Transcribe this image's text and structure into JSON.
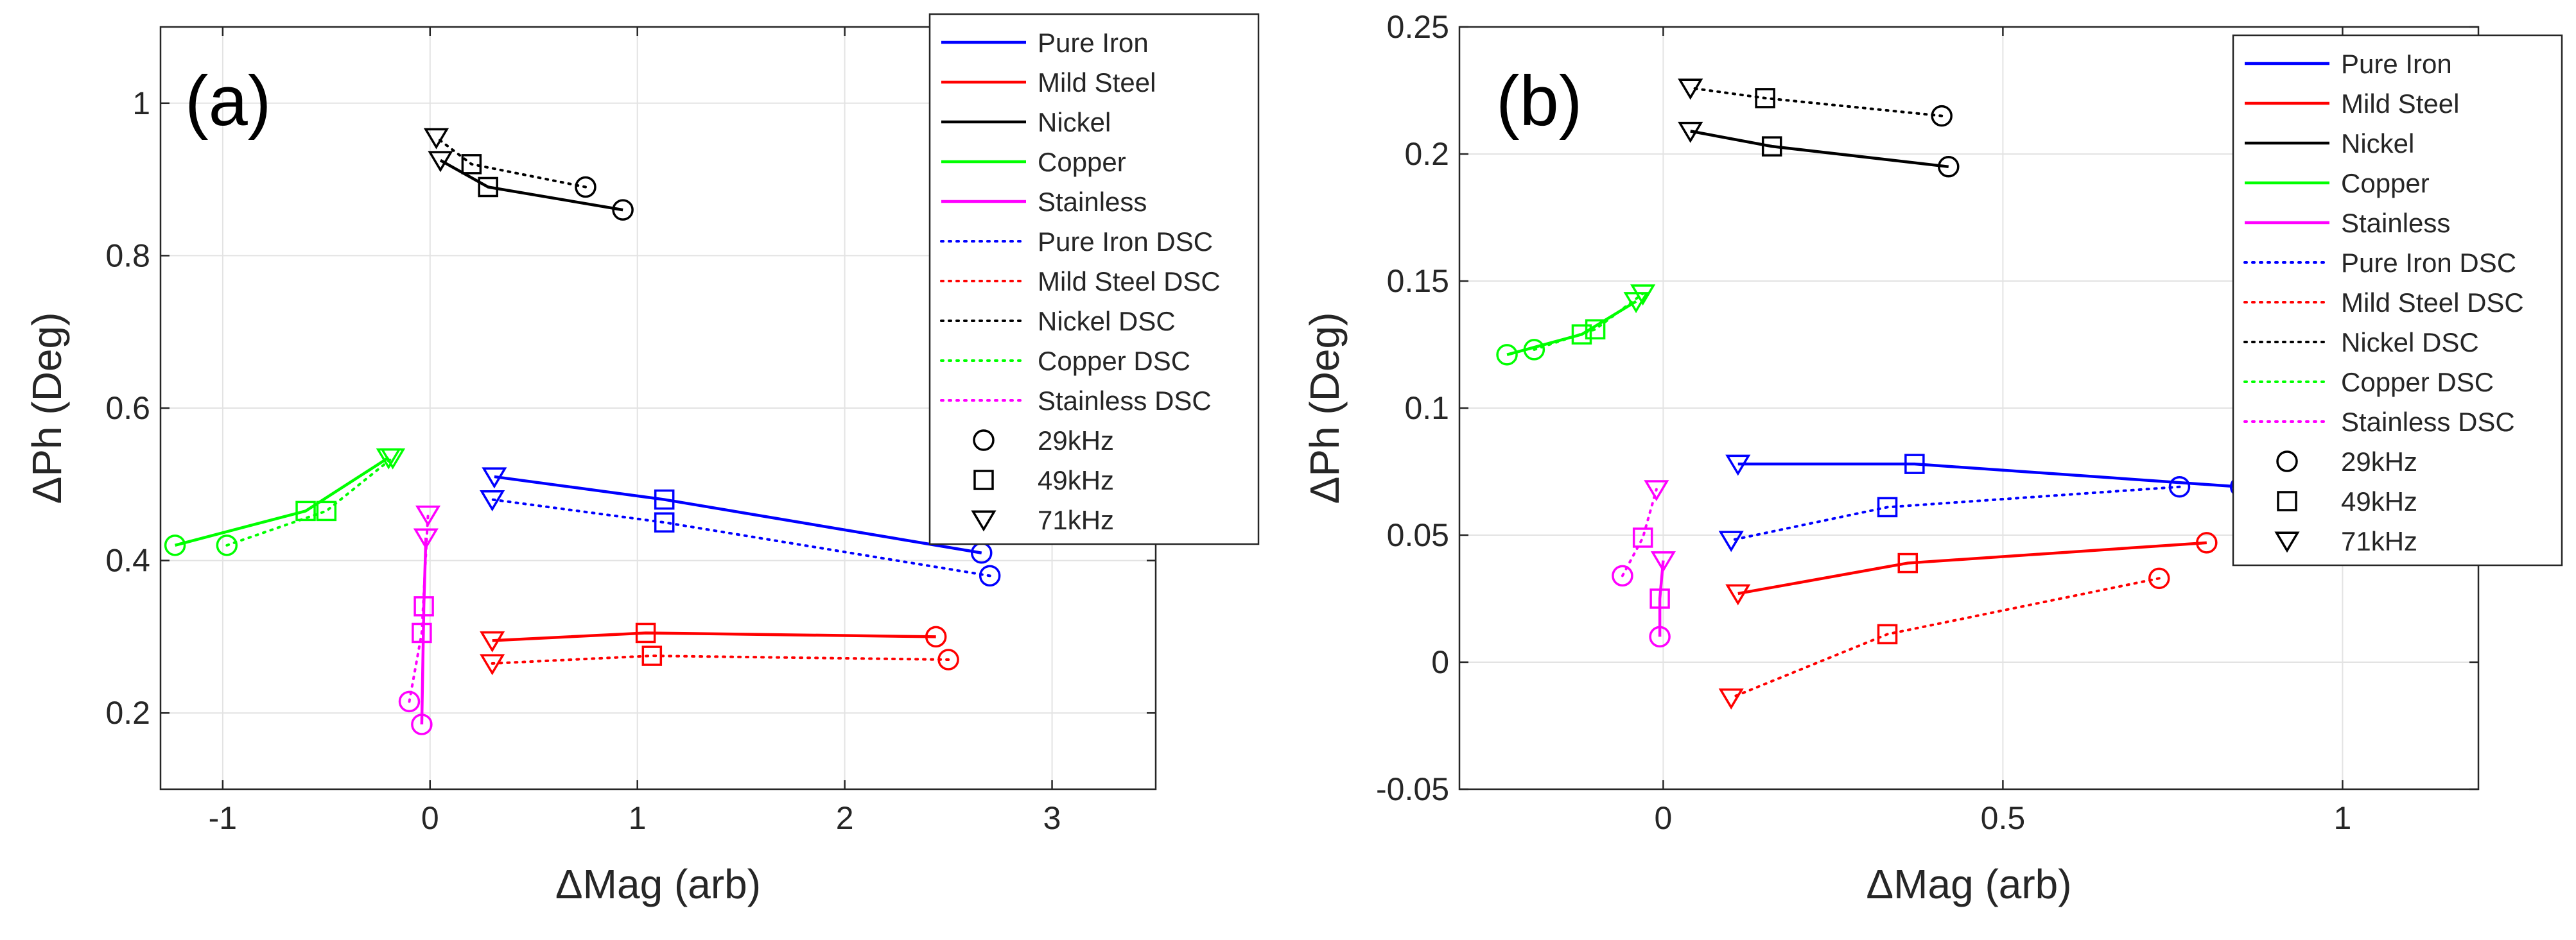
{
  "colors": {
    "Pure Iron": "#0000ff",
    "Mild Steel": "#ff0000",
    "Nickel": "#000000",
    "Copper": "#00ff00",
    "Stainless": "#ff00ff"
  },
  "chart_data": [
    {
      "type": "line",
      "panel_label": "(a)",
      "xlabel": "ΔMag (arb)",
      "ylabel": "ΔPh (Deg)",
      "xlim": [
        -1.3,
        3.5
      ],
      "ylim": [
        0.1,
        1.1
      ],
      "xticks": [
        -1,
        0,
        1,
        2,
        3
      ],
      "xtick_labels": [
        "-1",
        "0",
        "1",
        "2",
        "3"
      ],
      "yticks": [
        0.2,
        0.4,
        0.6,
        0.8,
        1.0
      ],
      "ytick_labels": [
        "0.2",
        "0.4",
        "0.6",
        "0.8",
        "1"
      ],
      "grid": true,
      "legend_position": "top-right",
      "legend": {
        "lines": [
          {
            "label": "Pure Iron",
            "material": "Pure Iron",
            "style": "solid"
          },
          {
            "label": "Mild Steel",
            "material": "Mild Steel",
            "style": "solid"
          },
          {
            "label": "Nickel",
            "material": "Nickel",
            "style": "solid"
          },
          {
            "label": "Copper",
            "material": "Copper",
            "style": "solid"
          },
          {
            "label": "Stainless",
            "material": "Stainless",
            "style": "solid"
          },
          {
            "label": "Pure Iron DSC",
            "material": "Pure Iron",
            "style": "dotted"
          },
          {
            "label": "Mild Steel DSC",
            "material": "Mild Steel",
            "style": "dotted"
          },
          {
            "label": "Nickel DSC",
            "material": "Nickel",
            "style": "dotted"
          },
          {
            "label": "Copper DSC",
            "material": "Copper",
            "style": "dotted"
          },
          {
            "label": "Stainless DSC",
            "material": "Stainless",
            "style": "dotted"
          }
        ],
        "markers": [
          {
            "label": "29kHz",
            "marker": "circle"
          },
          {
            "label": "49kHz",
            "marker": "square"
          },
          {
            "label": "71kHz",
            "marker": "triangle-down"
          }
        ]
      },
      "series": [
        {
          "name": "Pure Iron",
          "material": "Pure Iron",
          "style": "solid",
          "x": [
            2.66,
            1.13,
            0.31
          ],
          "y": [
            0.41,
            0.48,
            0.51
          ]
        },
        {
          "name": "Mild Steel",
          "material": "Mild Steel",
          "style": "solid",
          "x": [
            2.44,
            1.04,
            0.3
          ],
          "y": [
            0.3,
            0.305,
            0.295
          ]
        },
        {
          "name": "Nickel",
          "material": "Nickel",
          "style": "solid",
          "x": [
            0.93,
            0.28,
            0.05
          ],
          "y": [
            0.86,
            0.89,
            0.925
          ]
        },
        {
          "name": "Copper",
          "material": "Copper",
          "style": "solid",
          "x": [
            -1.23,
            -0.6,
            -0.2
          ],
          "y": [
            0.42,
            0.465,
            0.535
          ]
        },
        {
          "name": "Stainless",
          "material": "Stainless",
          "style": "solid",
          "x": [
            -0.04,
            -0.03,
            -0.02
          ],
          "y": [
            0.185,
            0.34,
            0.43
          ]
        },
        {
          "name": "Pure Iron DSC",
          "material": "Pure Iron",
          "style": "dotted",
          "x": [
            2.7,
            1.13,
            0.3
          ],
          "y": [
            0.38,
            0.45,
            0.48
          ]
        },
        {
          "name": "Mild Steel DSC",
          "material": "Mild Steel",
          "style": "dotted",
          "x": [
            2.5,
            1.07,
            0.3
          ],
          "y": [
            0.27,
            0.275,
            0.265
          ]
        },
        {
          "name": "Nickel DSC",
          "material": "Nickel",
          "style": "dotted",
          "x": [
            0.75,
            0.2,
            0.03
          ],
          "y": [
            0.89,
            0.92,
            0.955
          ]
        },
        {
          "name": "Copper DSC",
          "material": "Copper",
          "style": "dotted",
          "x": [
            -0.98,
            -0.5,
            -0.18
          ],
          "y": [
            0.42,
            0.465,
            0.535
          ]
        },
        {
          "name": "Stainless DSC",
          "material": "Stainless",
          "style": "dotted",
          "x": [
            -0.1,
            -0.04,
            -0.01
          ],
          "y": [
            0.215,
            0.305,
            0.46
          ]
        }
      ]
    },
    {
      "type": "line",
      "panel_label": "(b)",
      "xlabel": "ΔMag (arb)",
      "ylabel": "ΔPh (Deg)",
      "xlim": [
        -0.3,
        1.2
      ],
      "ylim": [
        -0.05,
        0.25
      ],
      "xticks": [
        0,
        0.5,
        1
      ],
      "xtick_labels": [
        "0",
        "0.5",
        "1"
      ],
      "yticks": [
        -0.05,
        0,
        0.05,
        0.1,
        0.15,
        0.2,
        0.25
      ],
      "ytick_labels": [
        "-0.05",
        "0",
        "0.05",
        "0.1",
        "0.15",
        "0.2",
        "0.25"
      ],
      "grid": true,
      "legend_position": "top-right",
      "legend": {
        "lines": [
          {
            "label": "Pure Iron",
            "material": "Pure Iron",
            "style": "solid"
          },
          {
            "label": "Mild Steel",
            "material": "Mild Steel",
            "style": "solid"
          },
          {
            "label": "Nickel",
            "material": "Nickel",
            "style": "solid"
          },
          {
            "label": "Copper",
            "material": "Copper",
            "style": "solid"
          },
          {
            "label": "Stainless",
            "material": "Stainless",
            "style": "solid"
          },
          {
            "label": "Pure Iron DSC",
            "material": "Pure Iron",
            "style": "dotted"
          },
          {
            "label": "Mild Steel DSC",
            "material": "Mild Steel",
            "style": "dotted"
          },
          {
            "label": "Nickel DSC",
            "material": "Nickel",
            "style": "dotted"
          },
          {
            "label": "Copper DSC",
            "material": "Copper",
            "style": "dotted"
          },
          {
            "label": "Stainless DSC",
            "material": "Stainless",
            "style": "dotted"
          }
        ],
        "markers": [
          {
            "label": "29kHz",
            "marker": "circle"
          },
          {
            "label": "49kHz",
            "marker": "square"
          },
          {
            "label": "71kHz",
            "marker": "triangle-down"
          }
        ]
      },
      "series": [
        {
          "name": "Pure Iron",
          "material": "Pure Iron",
          "style": "solid",
          "x": [
            0.85,
            0.37,
            0.11
          ],
          "y": [
            0.069,
            0.078,
            0.078
          ]
        },
        {
          "name": "Mild Steel",
          "material": "Mild Steel",
          "style": "solid",
          "x": [
            0.8,
            0.36,
            0.11
          ],
          "y": [
            0.047,
            0.039,
            0.027
          ]
        },
        {
          "name": "Nickel",
          "material": "Nickel",
          "style": "solid",
          "x": [
            0.42,
            0.16,
            0.04
          ],
          "y": [
            0.195,
            0.203,
            0.209
          ]
        },
        {
          "name": "Copper",
          "material": "Copper",
          "style": "solid",
          "x": [
            -0.23,
            -0.12,
            -0.04
          ],
          "y": [
            0.121,
            0.129,
            0.142
          ]
        },
        {
          "name": "Stainless",
          "material": "Stainless",
          "style": "solid",
          "x": [
            -0.005,
            -0.005,
            0.0
          ],
          "y": [
            0.01,
            0.025,
            0.04
          ]
        },
        {
          "name": "Pure Iron DSC",
          "material": "Pure Iron",
          "style": "dotted",
          "x": [
            0.76,
            0.33,
            0.1
          ],
          "y": [
            0.069,
            0.061,
            0.048
          ]
        },
        {
          "name": "Mild Steel DSC",
          "material": "Mild Steel",
          "style": "dotted",
          "x": [
            0.73,
            0.33,
            0.1
          ],
          "y": [
            0.033,
            0.011,
            -0.014
          ]
        },
        {
          "name": "Nickel DSC",
          "material": "Nickel",
          "style": "dotted",
          "x": [
            0.41,
            0.15,
            0.04
          ],
          "y": [
            0.215,
            0.222,
            0.226
          ]
        },
        {
          "name": "Copper DSC",
          "material": "Copper",
          "style": "dotted",
          "x": [
            -0.19,
            -0.1,
            -0.03
          ],
          "y": [
            0.123,
            0.131,
            0.145
          ]
        },
        {
          "name": "Stainless DSC",
          "material": "Stainless",
          "style": "dotted",
          "x": [
            -0.06,
            -0.03,
            -0.01
          ],
          "y": [
            0.034,
            0.049,
            0.068
          ]
        }
      ]
    }
  ]
}
